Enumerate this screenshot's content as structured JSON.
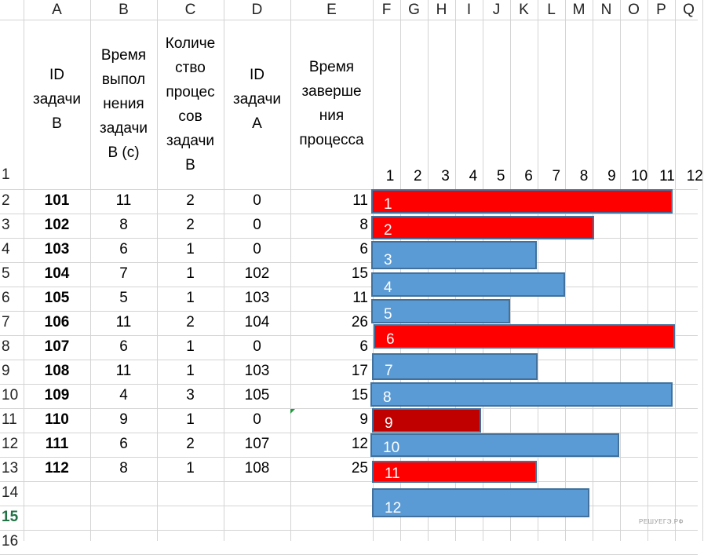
{
  "column_headers": [
    "A",
    "B",
    "C",
    "D",
    "E",
    "F",
    "G",
    "H",
    "I",
    "J",
    "K",
    "L",
    "M",
    "N",
    "O",
    "P",
    "Q"
  ],
  "row_numbers": [
    "1",
    "2",
    "3",
    "4",
    "5",
    "6",
    "7",
    "8",
    "9",
    "10",
    "11",
    "12",
    "13",
    "14",
    "15",
    "16"
  ],
  "active_row": "15",
  "header_row": {
    "task_id_b": [
      "ID",
      "задачи",
      "B"
    ],
    "exec_time_b": [
      "Время",
      "выпол",
      "нения",
      "задачи",
      "B (с)"
    ],
    "proc_count_b": [
      "Количе",
      "ство",
      "процес",
      "сов",
      "задачи",
      "B"
    ],
    "task_id_a": [
      "ID",
      "задачи",
      "A"
    ],
    "finish_time": [
      "Время",
      "заверше",
      "ния",
      "процесса"
    ]
  },
  "scale": [
    "1",
    "2",
    "3",
    "4",
    "5",
    "6",
    "7",
    "8",
    "9",
    "10",
    "11",
    "12"
  ],
  "rows": [
    {
      "id": "101",
      "time": "11",
      "count": "2",
      "dep": "0",
      "end": "11"
    },
    {
      "id": "102",
      "time": "8",
      "count": "2",
      "dep": "0",
      "end": "8"
    },
    {
      "id": "103",
      "time": "6",
      "count": "1",
      "dep": "0",
      "end": "6"
    },
    {
      "id": "104",
      "time": "7",
      "count": "1",
      "dep": "102",
      "end": "15"
    },
    {
      "id": "105",
      "time": "5",
      "count": "1",
      "dep": "103",
      "end": "11"
    },
    {
      "id": "106",
      "time": "11",
      "count": "2",
      "dep": "104",
      "end": "26"
    },
    {
      "id": "107",
      "time": "6",
      "count": "1",
      "dep": "0",
      "end": "6"
    },
    {
      "id": "108",
      "time": "11",
      "count": "1",
      "dep": "103",
      "end": "17"
    },
    {
      "id": "109",
      "time": "4",
      "count": "3",
      "dep": "105",
      "end": "15"
    },
    {
      "id": "110",
      "time": "9",
      "count": "1",
      "dep": "0",
      "end": "9"
    },
    {
      "id": "111",
      "time": "6",
      "count": "2",
      "dep": "107",
      "end": "12"
    },
    {
      "id": "112",
      "time": "8",
      "count": "1",
      "dep": "108",
      "end": "25"
    }
  ],
  "bars": [
    {
      "label": "1",
      "color": "#ff0000"
    },
    {
      "label": "2",
      "color": "#ff0000"
    },
    {
      "label": "3",
      "color": "#5b9bd5"
    },
    {
      "label": "4",
      "color": "#5b9bd5"
    },
    {
      "label": "5",
      "color": "#5b9bd5"
    },
    {
      "label": "6",
      "color": "#ff0000"
    },
    {
      "label": "7",
      "color": "#5b9bd5"
    },
    {
      "label": "8",
      "color": "#5b9bd5"
    },
    {
      "label": "9",
      "color": "#c00000"
    },
    {
      "label": "10",
      "color": "#5b9bd5"
    },
    {
      "label": "11",
      "color": "#ff0000"
    },
    {
      "label": "12",
      "color": "#5b9bd5"
    }
  ],
  "watermark": "РЕШУЕГЭ.РФ"
}
